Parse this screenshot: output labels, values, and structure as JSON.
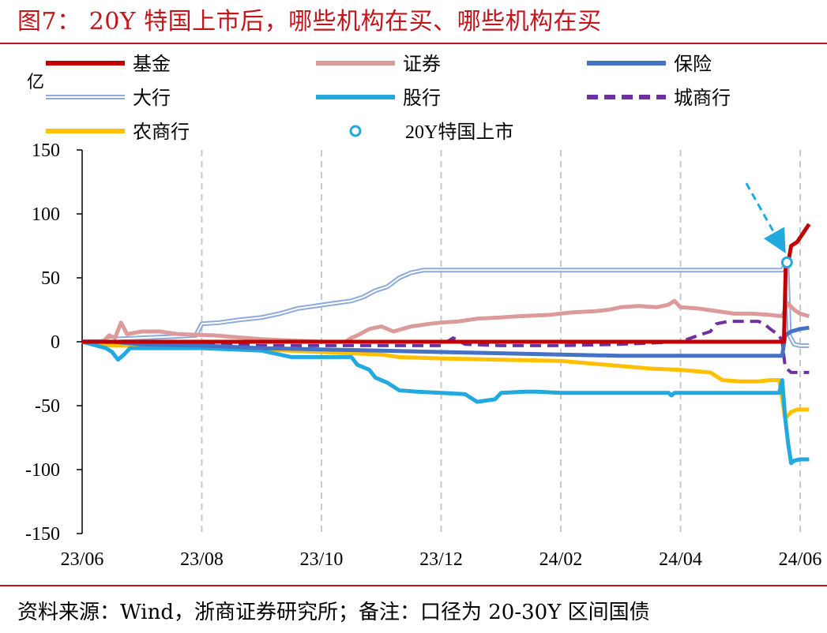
{
  "figure": {
    "title": "图7：  20Y 特国上市后，哪些机构在买、哪些机构在买",
    "source": "资料来源：Wind，浙商证券研究所；备注：口径为 20-30Y 区间国债",
    "unit": "亿"
  },
  "chart_data": {
    "type": "line",
    "x_unit": "month index from 2023-06",
    "x_ticks": [
      "23/06",
      "23/08",
      "23/10",
      "23/12",
      "24/02",
      "24/04",
      "24/06"
    ],
    "y_ticks": [
      "150",
      "100",
      "50",
      "0",
      "-50",
      "-100",
      "-150"
    ],
    "ylim": [
      -150,
      150
    ],
    "xlim": [
      0,
      12
    ],
    "grid": "vertical dashed at each x tick",
    "legend_position": "top",
    "series": [
      {
        "name": "基金",
        "color": "#c00000",
        "style": "solid",
        "width": 5,
        "points": [
          [
            0,
            0
          ],
          [
            11.7,
            0
          ],
          [
            11.73,
            0
          ],
          [
            11.76,
            60
          ],
          [
            11.8,
            62
          ],
          [
            11.85,
            75
          ],
          [
            11.95,
            78
          ],
          [
            12.05,
            85
          ],
          [
            12.15,
            92
          ]
        ]
      },
      {
        "name": "证券",
        "color": "#dc9a9a",
        "style": "solid",
        "width": 5,
        "points": [
          [
            0,
            0
          ],
          [
            0.35,
            0
          ],
          [
            0.45,
            5
          ],
          [
            0.55,
            3
          ],
          [
            0.65,
            15
          ],
          [
            0.75,
            6
          ],
          [
            1.0,
            8
          ],
          [
            1.3,
            8
          ],
          [
            1.6,
            6
          ],
          [
            2.2,
            5
          ],
          [
            3.0,
            2
          ],
          [
            4.0,
            0
          ],
          [
            4.4,
            0
          ],
          [
            4.5,
            3
          ],
          [
            4.6,
            5
          ],
          [
            4.8,
            10
          ],
          [
            5.0,
            12
          ],
          [
            5.2,
            8
          ],
          [
            5.5,
            12
          ],
          [
            5.8,
            14
          ],
          [
            6.0,
            15
          ],
          [
            6.3,
            16
          ],
          [
            6.6,
            18
          ],
          [
            7.0,
            19
          ],
          [
            7.3,
            20
          ],
          [
            7.8,
            21
          ],
          [
            8.2,
            23
          ],
          [
            8.6,
            24
          ],
          [
            8.8,
            25
          ],
          [
            9.0,
            27
          ],
          [
            9.3,
            28
          ],
          [
            9.6,
            27
          ],
          [
            9.8,
            29
          ],
          [
            9.9,
            32
          ],
          [
            10.0,
            27
          ],
          [
            10.3,
            26
          ],
          [
            10.6,
            24
          ],
          [
            10.9,
            22
          ],
          [
            11.2,
            22
          ],
          [
            11.5,
            21
          ],
          [
            11.7,
            20
          ],
          [
            11.75,
            25
          ],
          [
            11.8,
            30
          ],
          [
            11.9,
            25
          ],
          [
            12.0,
            22
          ],
          [
            12.15,
            20
          ]
        ]
      },
      {
        "name": "保险",
        "color": "#4472c4",
        "style": "solid",
        "width": 5,
        "points": [
          [
            0,
            0
          ],
          [
            0.5,
            0
          ],
          [
            1.0,
            -2
          ],
          [
            2.0,
            -3
          ],
          [
            3.0,
            -5
          ],
          [
            4.0,
            -6
          ],
          [
            5.0,
            -7
          ],
          [
            6.0,
            -8
          ],
          [
            7.0,
            -9
          ],
          [
            8.0,
            -10
          ],
          [
            9.0,
            -11
          ],
          [
            10.0,
            -11
          ],
          [
            11.7,
            -11
          ],
          [
            11.75,
            5
          ],
          [
            11.85,
            8
          ],
          [
            12.0,
            10
          ],
          [
            12.15,
            11
          ]
        ]
      },
      {
        "name": "大行",
        "color": "#8eaadb",
        "style": "double",
        "width": 4,
        "points": [
          [
            0,
            0
          ],
          [
            0.3,
            0
          ],
          [
            0.5,
            2
          ],
          [
            1.0,
            3
          ],
          [
            1.5,
            4
          ],
          [
            1.9,
            5
          ],
          [
            2.0,
            14
          ],
          [
            2.3,
            15
          ],
          [
            2.6,
            17
          ],
          [
            3.0,
            19
          ],
          [
            3.3,
            22
          ],
          [
            3.6,
            26
          ],
          [
            3.9,
            28
          ],
          [
            4.2,
            30
          ],
          [
            4.5,
            32
          ],
          [
            4.7,
            35
          ],
          [
            4.9,
            40
          ],
          [
            5.1,
            43
          ],
          [
            5.3,
            50
          ],
          [
            5.5,
            54
          ],
          [
            5.7,
            56
          ],
          [
            6.2,
            56
          ],
          [
            11.7,
            56
          ],
          [
            11.75,
            60
          ],
          [
            11.78,
            62
          ],
          [
            11.82,
            5
          ],
          [
            11.9,
            -2
          ],
          [
            12.0,
            -3
          ],
          [
            12.15,
            -3
          ]
        ]
      },
      {
        "name": "股行",
        "color": "#21a9e0",
        "style": "solid",
        "width": 5,
        "points": [
          [
            0,
            0
          ],
          [
            0.4,
            -5
          ],
          [
            0.5,
            -8
          ],
          [
            0.6,
            -14
          ],
          [
            0.7,
            -10
          ],
          [
            0.8,
            -5
          ],
          [
            1.0,
            -5
          ],
          [
            2.0,
            -5
          ],
          [
            3.0,
            -7
          ],
          [
            3.5,
            -12
          ],
          [
            4.5,
            -12
          ],
          [
            4.6,
            -18
          ],
          [
            4.8,
            -22
          ],
          [
            4.9,
            -28
          ],
          [
            5.1,
            -32
          ],
          [
            5.3,
            -38
          ],
          [
            5.6,
            -39
          ],
          [
            6.0,
            -40
          ],
          [
            6.4,
            -41
          ],
          [
            6.6,
            -47
          ],
          [
            6.9,
            -45
          ],
          [
            7.0,
            -40
          ],
          [
            7.4,
            -39
          ],
          [
            7.6,
            -39
          ],
          [
            8.0,
            -40
          ],
          [
            8.5,
            -40
          ],
          [
            9.0,
            -40
          ],
          [
            9.5,
            -40
          ],
          [
            9.8,
            -40
          ],
          [
            9.85,
            -42
          ],
          [
            9.9,
            -40
          ],
          [
            11.3,
            -40
          ],
          [
            11.65,
            -40
          ],
          [
            11.7,
            -30
          ],
          [
            11.75,
            -60
          ],
          [
            11.8,
            -80
          ],
          [
            11.85,
            -95
          ],
          [
            11.9,
            -93
          ],
          [
            12.0,
            -92
          ],
          [
            12.15,
            -92
          ]
        ]
      },
      {
        "name": "城商行",
        "color": "#7030a0",
        "style": "dashed",
        "width": 4,
        "points": [
          [
            0,
            0
          ],
          [
            1.0,
            -1
          ],
          [
            2.0,
            -2
          ],
          [
            3.0,
            -3
          ],
          [
            4.0,
            -3
          ],
          [
            5.0,
            -3
          ],
          [
            6.0,
            -3
          ],
          [
            6.2,
            3
          ],
          [
            6.4,
            -2
          ],
          [
            7.0,
            -3
          ],
          [
            8.0,
            -3
          ],
          [
            9.0,
            -2
          ],
          [
            10.0,
            0
          ],
          [
            10.3,
            5
          ],
          [
            10.5,
            8
          ],
          [
            10.6,
            14
          ],
          [
            10.8,
            16
          ],
          [
            11.3,
            16
          ],
          [
            11.4,
            14
          ],
          [
            11.5,
            10
          ],
          [
            11.65,
            5
          ],
          [
            11.7,
            0
          ],
          [
            11.75,
            -20
          ],
          [
            11.85,
            -24
          ],
          [
            12.15,
            -24
          ]
        ]
      },
      {
        "name": "农商行",
        "color": "#ffc000",
        "style": "solid",
        "width": 5,
        "points": [
          [
            0,
            0
          ],
          [
            0.5,
            -3
          ],
          [
            1.0,
            -3
          ],
          [
            2.0,
            -4
          ],
          [
            3.0,
            -6
          ],
          [
            4.0,
            -8
          ],
          [
            5.0,
            -10
          ],
          [
            5.3,
            -12
          ],
          [
            6.0,
            -13
          ],
          [
            7.0,
            -14
          ],
          [
            8.0,
            -15
          ],
          [
            8.5,
            -17
          ],
          [
            9.0,
            -19
          ],
          [
            9.5,
            -21
          ],
          [
            10.0,
            -22
          ],
          [
            10.5,
            -24
          ],
          [
            10.7,
            -30
          ],
          [
            11.0,
            -31
          ],
          [
            11.3,
            -31
          ],
          [
            11.5,
            -30
          ],
          [
            11.65,
            -30
          ],
          [
            11.75,
            -60
          ],
          [
            11.85,
            -55
          ],
          [
            11.95,
            -53
          ],
          [
            12.15,
            -53
          ]
        ]
      }
    ],
    "marker": {
      "name": "20Y特国上市",
      "x": 11.78,
      "y": 62,
      "color": "#21a9e0"
    },
    "arrow": {
      "from": [
        11.1,
        124
      ],
      "to": [
        11.7,
        74
      ],
      "color": "#21a9e0"
    }
  }
}
